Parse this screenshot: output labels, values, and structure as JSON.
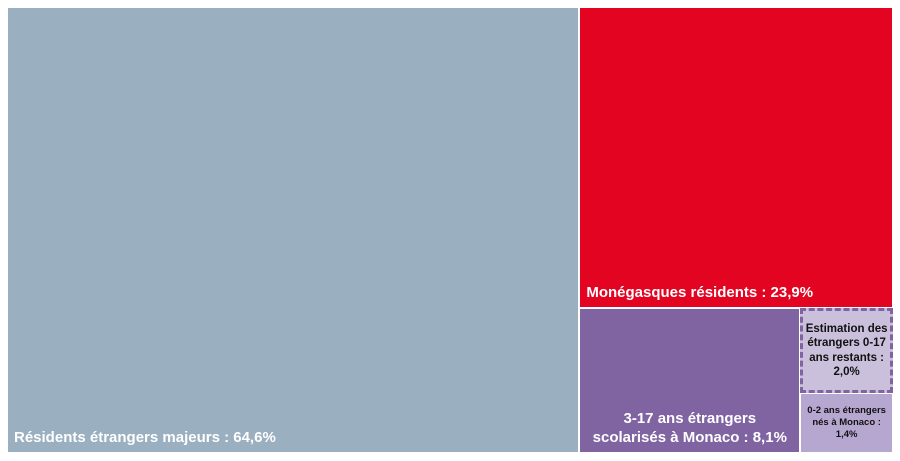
{
  "chart_data": {
    "type": "treemap",
    "values": [
      64.6,
      23.9,
      8.1,
      2.0,
      1.4
    ],
    "value_labels": [
      "Résidents étrangers majeurs : 64,6%",
      "Monégasques résidents : 23,9%",
      "3-17 ans étrangers scolarisés à Monaco : 8,1%",
      "Estimation des étrangers 0-17 ans restants : 2,0%",
      "0-2 ans étrangers nés à Monaco : 1,4%"
    ],
    "colors": [
      "#9aafc0",
      "#e30421",
      "#8064a2",
      "#cbc0dc",
      "#b5a7d0"
    ]
  }
}
